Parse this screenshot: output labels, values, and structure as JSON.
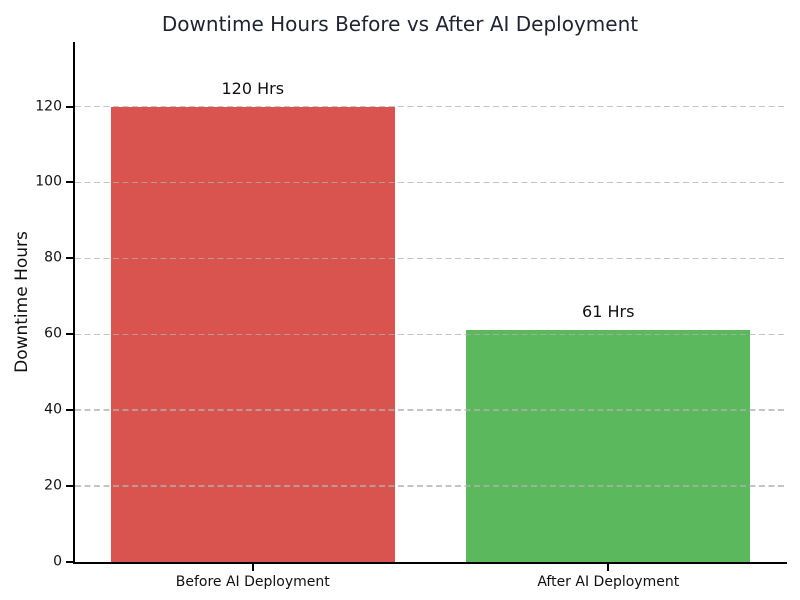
{
  "chart_data": {
    "type": "bar",
    "title": "Downtime Hours Before vs After AI Deployment",
    "categories": [
      "Before AI Deployment",
      "After AI Deployment"
    ],
    "values": [
      120,
      61
    ],
    "value_labels": [
      "120 Hrs",
      "61 Hrs"
    ],
    "bar_colors": [
      "#d9534f",
      "#5cb85c"
    ],
    "xlabel": "",
    "ylabel": "Downtime Hours",
    "ylim": [
      0,
      137
    ],
    "yticks": [
      0,
      20,
      40,
      60,
      80,
      100,
      120
    ],
    "grid": "horizontal-dashed-above-bars",
    "legend": "none",
    "colors": {
      "background": "#ffffff",
      "title_text": "#1f2430",
      "axis_spine": "#000000",
      "tick_text": "#111111",
      "gridline": "#b0b0b0",
      "bar_before": "#d9534f",
      "bar_after": "#5cb85c"
    }
  }
}
